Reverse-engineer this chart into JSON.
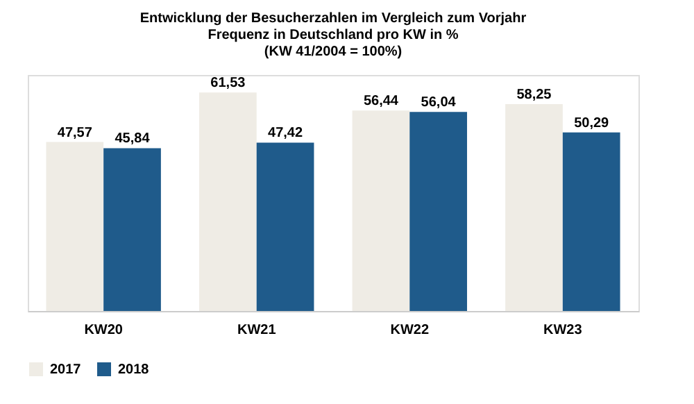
{
  "chart_data": {
    "type": "bar",
    "title": "Entwicklung der Besucherzahlen im Vergleich zum Vorjahr\nFrequenz in Deutschland pro KW in %\n(KW 41/2004 = 100%)",
    "categories": [
      "KW20",
      "KW21",
      "KW22",
      "KW23"
    ],
    "series": [
      {
        "name": "2017",
        "color": "#efece5",
        "values": [
          47.57,
          61.53,
          56.44,
          58.25
        ],
        "value_labels": [
          "47,57",
          "61,53",
          "56,44",
          "58,25"
        ]
      },
      {
        "name": "2018",
        "color": "#1f5b8b",
        "values": [
          45.84,
          47.42,
          56.04,
          50.29
        ],
        "value_labels": [
          "45,84",
          "47,42",
          "56,04",
          "50,29"
        ]
      }
    ],
    "legend": "bottom",
    "grid": false,
    "tick_labels": "x"
  }
}
